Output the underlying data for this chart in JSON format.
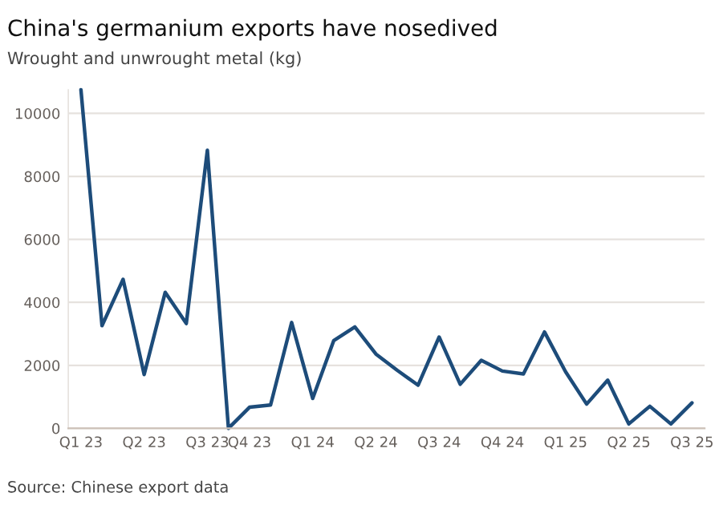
{
  "chart_data": {
    "type": "line",
    "title": "China's germanium exports have nosedived",
    "subtitle": "Wrought and unwrought metal (kg)",
    "annotations": [
      "Source: Chinese export data"
    ],
    "categories": [
      "Q1 23",
      null,
      null,
      "Q2 23",
      null,
      null,
      "Q3 23",
      null,
      "Q4 23",
      null,
      null,
      "Q1 24",
      null,
      null,
      "Q2 24",
      null,
      null,
      "Q3 24",
      null,
      null,
      "Q4 24",
      null,
      null,
      "Q1 25",
      null,
      null,
      "Q2 25",
      null,
      null,
      "Q3 25"
    ],
    "series": [
      {
        "color": "#1d4c7a",
        "values": [
          10750,
          3260,
          4730,
          1710,
          4320,
          3330,
          8830,
          0,
          670,
          740,
          3360,
          950,
          2790,
          3220,
          2360,
          1850,
          1370,
          2900,
          1400,
          2160,
          1820,
          1730,
          3060,
          1800,
          770,
          1530,
          140,
          700,
          140,
          810
        ]
      }
    ],
    "ylim": [
      0,
      10750
    ],
    "yticks": [
      0,
      2000,
      4000,
      6000,
      8000,
      10000
    ],
    "grid": "y",
    "legend": false,
    "marker": "none",
    "line_style": "solid"
  }
}
